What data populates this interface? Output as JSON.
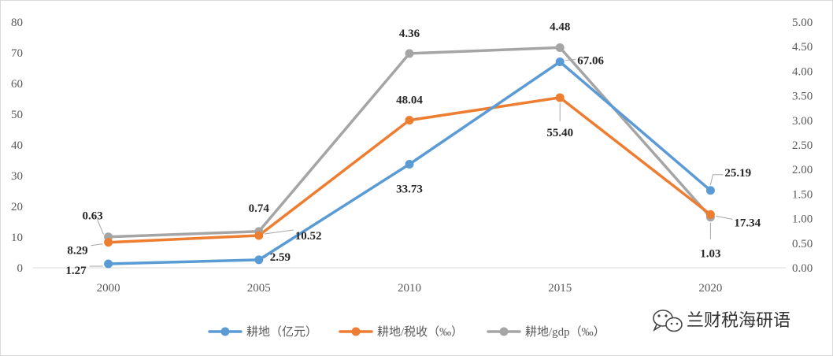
{
  "chart_data": {
    "type": "line",
    "title": "",
    "xlabel": "",
    "ylabel": "",
    "categories": [
      "2000",
      "2005",
      "2010",
      "2015",
      "2020"
    ],
    "y_left": {
      "range": [
        0,
        80
      ],
      "ticks": [
        "0",
        "10",
        "20",
        "30",
        "40",
        "50",
        "60",
        "70",
        "80"
      ]
    },
    "y_right": {
      "range": [
        0,
        5
      ],
      "ticks": [
        "0.00",
        "0.50",
        "1.00",
        "1.50",
        "2.00",
        "2.50",
        "3.00",
        "3.50",
        "4.00",
        "4.50",
        "5.00"
      ]
    },
    "grid": false,
    "legend_position": "bottom",
    "series": [
      {
        "name": "耕地（亿元）",
        "axis": "left",
        "color": "#5b9bd5",
        "values": [
          1.27,
          2.59,
          33.73,
          67.06,
          25.19
        ],
        "labels": [
          "1.27",
          "2.59",
          "33.73",
          "67.06",
          "25.19"
        ]
      },
      {
        "name": "耕地/税收（‰）",
        "axis": "left",
        "color": "#ed7d31",
        "values": [
          8.29,
          10.52,
          48.04,
          55.4,
          17.34
        ],
        "labels": [
          "8.29",
          "10.52",
          "48.04",
          "55.40",
          "17.34"
        ]
      },
      {
        "name": "耕地/gdp（‰）",
        "axis": "right",
        "color": "#a5a5a5",
        "values": [
          0.63,
          0.74,
          4.36,
          4.48,
          1.03
        ],
        "labels": [
          "0.63",
          "0.74",
          "4.36",
          "4.48",
          "1.03"
        ]
      }
    ]
  },
  "watermark": {
    "text": "兰财税海研语",
    "icon": "wechat-icon"
  }
}
